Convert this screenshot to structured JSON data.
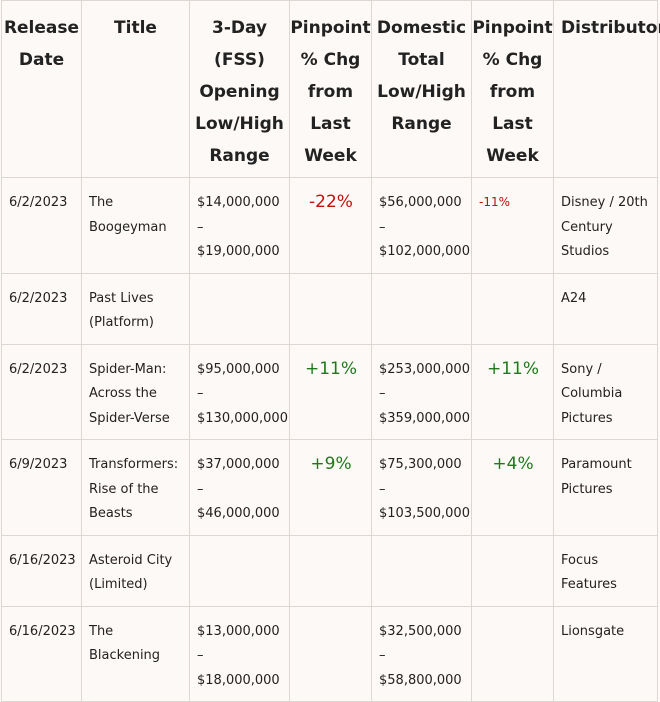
{
  "table": {
    "headers": [
      [
        "Release",
        "Date"
      ],
      [
        "Title"
      ],
      [
        "3-Day",
        "(FSS)",
        "Opening",
        "Low/High",
        "Range"
      ],
      [
        "Pinpoint",
        "% Chg",
        "from",
        "Last",
        "Week"
      ],
      [
        "Domestic",
        "Total",
        "Low/High",
        "Range"
      ],
      [
        "Pinpoint",
        "% Chg",
        "from",
        "Last",
        "Week"
      ],
      [
        "Distributor"
      ]
    ],
    "rows": [
      {
        "date": "6/2/2023",
        "title": [
          "The",
          "Boogeyman"
        ],
        "opening": [
          "$14,000,000",
          "–",
          "$19,000,000"
        ],
        "opening_chg": "-22%",
        "total": [
          "$56,000,000",
          "–",
          "$102,000,000"
        ],
        "total_chg": "-11%",
        "distributor": [
          "Disney / 20th",
          "Century",
          "Studios"
        ]
      },
      {
        "date": "6/2/2023",
        "title": [
          "Past Lives",
          "(Platform)"
        ],
        "opening": [],
        "opening_chg": "",
        "total": [],
        "total_chg": "",
        "distributor": [
          "A24"
        ]
      },
      {
        "date": "6/2/2023",
        "title": [
          "Spider-Man:",
          "Across the",
          "Spider-Verse"
        ],
        "opening": [
          "$95,000,000",
          "–",
          "$130,000,000"
        ],
        "opening_chg": "+11%",
        "total": [
          "$253,000,000",
          "–",
          "$359,000,000"
        ],
        "total_chg": "+11%",
        "distributor": [
          "Sony /",
          "Columbia",
          "Pictures"
        ]
      },
      {
        "date": "6/9/2023",
        "title": [
          "Transformers:",
          "Rise of the",
          "Beasts"
        ],
        "opening": [
          "$37,000,000",
          "–",
          "$46,000,000"
        ],
        "opening_chg": "+9%",
        "total": [
          "$75,300,000",
          "–",
          "$103,500,000"
        ],
        "total_chg": "+4%",
        "distributor": [
          "Paramount",
          "Pictures"
        ]
      },
      {
        "date": "6/16/2023",
        "title": [
          "Asteroid City",
          "(Limited)"
        ],
        "opening": [],
        "opening_chg": "",
        "total": [],
        "total_chg": "",
        "distributor": [
          "Focus",
          "Features"
        ]
      },
      {
        "date": "6/16/2023",
        "title": [
          "The",
          "Blackening"
        ],
        "opening": [
          "$13,000,000",
          "–",
          "$18,000,000"
        ],
        "opening_chg": "",
        "total": [
          "$32,500,000",
          "–",
          "$58,800,000"
        ],
        "total_chg": "",
        "distributor": [
          "Lionsgate"
        ]
      }
    ],
    "colors": {
      "negative": "#c0100c",
      "positive": "#1e7a1a"
    }
  }
}
